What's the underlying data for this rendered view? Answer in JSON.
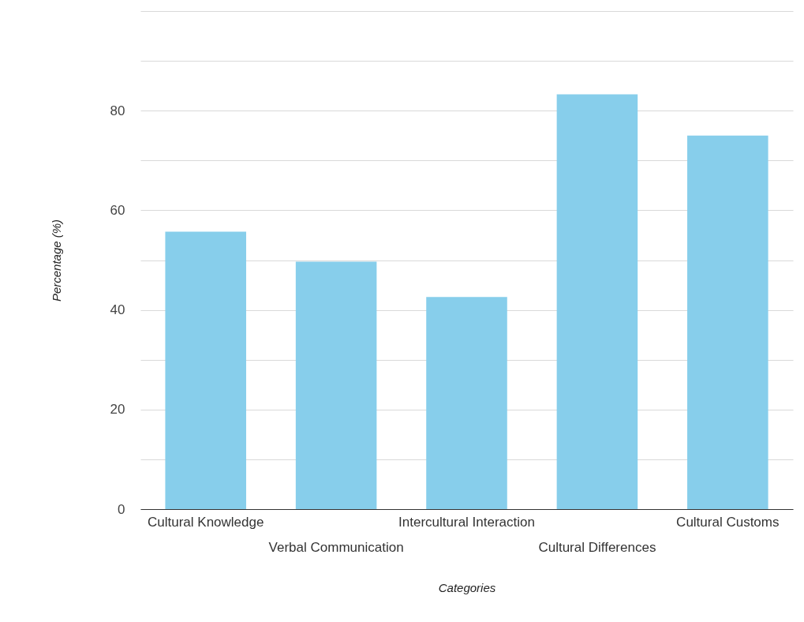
{
  "chart_data": {
    "type": "bar",
    "xlabel": "Categories",
    "ylabel": "Percentage (%)",
    "categories": [
      "Cultural Knowledge",
      "Verbal Communication",
      "Intercultural Interaction",
      "Cultural Differences",
      "Cultural Customs"
    ],
    "values": [
      55.7,
      49.7,
      42.6,
      83.3,
      75.0
    ],
    "color": "#87ceeb",
    "ylim": [
      0,
      100
    ],
    "yticks": [
      0,
      {
        "value": 10,
        "label": null
      },
      20,
      {
        "value": 30,
        "label": null
      },
      40,
      {
        "value": 50,
        "label": null
      },
      60,
      {
        "value": 70,
        "label": null
      },
      80,
      {
        "value": 90,
        "label": null
      },
      {
        "value": 100,
        "label": null
      }
    ],
    "grid": "y"
  }
}
